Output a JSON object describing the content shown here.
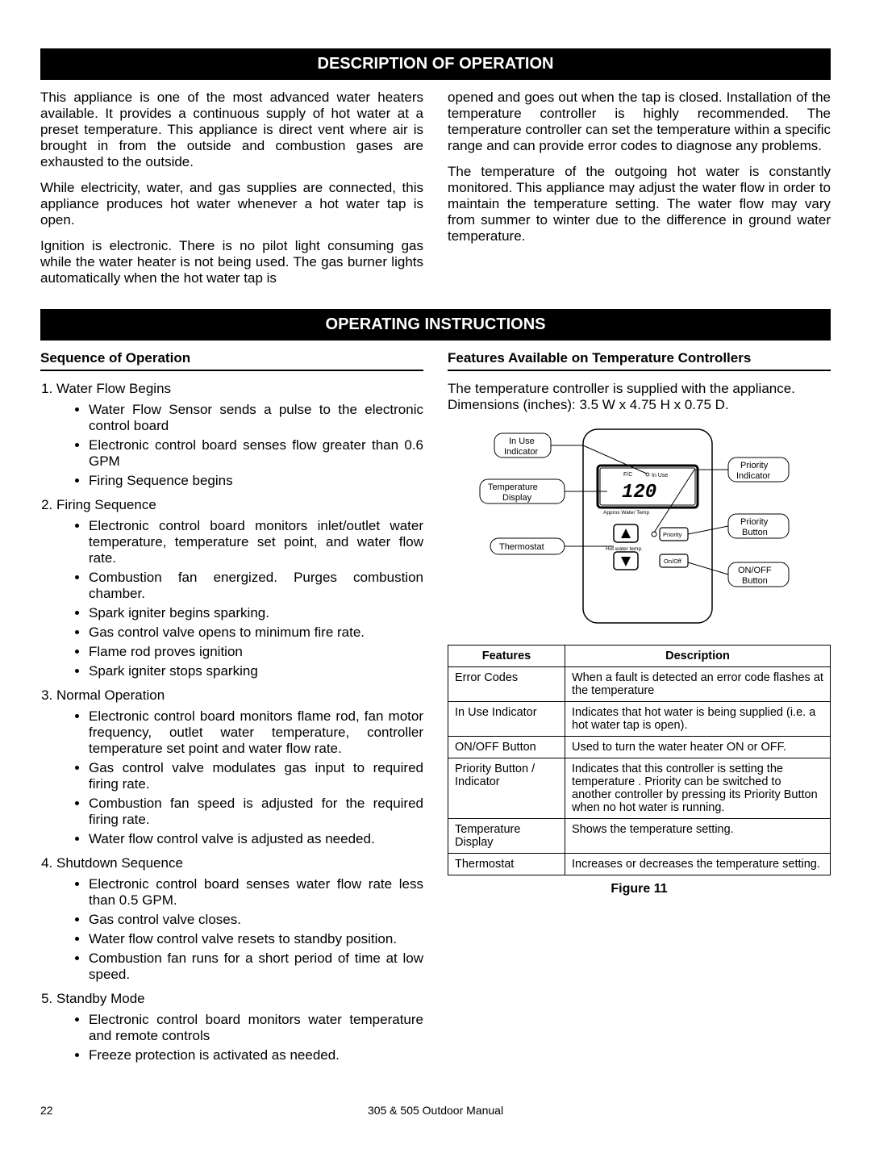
{
  "headers": {
    "description": "DESCRIPTION OF OPERATION",
    "operating": "OPERATING INSTRUCTIONS"
  },
  "intro": {
    "left": [
      "This appliance is one of the most advanced water heaters available. It provides a continuous supply of hot water at a preset temperature. This appliance is direct vent where air is brought in from the outside and combustion gases are exhausted to the outside.",
      "While electricity, water, and gas supplies are connected, this appliance produces hot water whenever a hot water tap is open.",
      "Ignition is electronic. There is no pilot light consuming gas while the water heater is not being used. The gas burner lights automatically when the hot water tap is"
    ],
    "right": [
      "opened and goes out when the tap is closed. Installation of the temperature controller is highly recommended. The temperature controller can set the temperature within a specific range and can provide error codes to diagnose any problems.",
      "The temperature of the outgoing hot water is constantly monitored. This appliance may adjust the water flow in order to maintain the temperature setting. The water flow may vary from summer to winter due to the difference in ground water temperature."
    ]
  },
  "sequence": {
    "heading": "Sequence of Operation",
    "items": [
      {
        "title": "Water Flow Begins",
        "bullets": [
          "Water Flow Sensor sends a pulse to the electronic control board",
          "Electronic control board senses flow greater than 0.6 GPM",
          "Firing Sequence begins"
        ]
      },
      {
        "title": "Firing Sequence",
        "bullets": [
          "Electronic control board monitors inlet/outlet water temperature, temperature set point, and water flow rate.",
          "Combustion fan energized. Purges combustion chamber.",
          "Spark igniter begins sparking.",
          "Gas control valve opens to minimum fire rate.",
          "Flame rod proves ignition",
          "Spark igniter stops sparking"
        ]
      },
      {
        "title": "Normal Operation",
        "bullets": [
          "Electronic control board monitors flame rod, fan motor frequency, outlet water temperature, controller temperature set point and water flow rate.",
          "Gas control valve modulates gas input to required firing rate.",
          "Combustion fan speed is adjusted for the required firing rate.",
          "Water flow control valve is adjusted as needed."
        ]
      },
      {
        "title": "Shutdown Sequence",
        "bullets": [
          "Electronic control board senses water flow rate less than 0.5 GPM.",
          "Gas control valve closes.",
          "Water flow control valve resets to standby position.",
          "Combustion fan runs for a short period of time at low speed."
        ]
      },
      {
        "title": "Standby Mode",
        "bullets": [
          "Electronic control board monitors water temperature and remote controls",
          "Freeze protection is activated as needed."
        ]
      }
    ]
  },
  "features_section": {
    "heading": "Features Available on Temperature Controllers",
    "dims": "The temperature controller is supplied with the appliance. Dimensions (inches): 3.5 W x 4.75 H x 0.75 D.",
    "diagram": {
      "labels": {
        "in_use": "In Use Indicator",
        "temp_display": "Temperature Display",
        "thermostat": "Thermostat",
        "priority_ind": "Priority Indicator",
        "priority_btn": "Priority Button",
        "onoff": "ON/OFF Button"
      },
      "lcd": {
        "fc": "F/C",
        "inuse": "In Use",
        "value": "120",
        "approx": "Approx Water Temp",
        "hotwater": "Hot water temp.",
        "priority": "Priority",
        "onoff": "On/Off"
      },
      "colors": {
        "stroke": "#000000",
        "fill": "#ffffff",
        "gray": "#d8d8d8"
      }
    },
    "table": {
      "headers": [
        "Features",
        "Description"
      ],
      "rows": [
        [
          "Error Codes",
          "When a fault is detected an error code flashes at the temperature"
        ],
        [
          "In Use Indicator",
          "Indicates that hot water is being supplied (i.e. a hot water tap is open)."
        ],
        [
          "ON/OFF Button",
          "Used to turn the water heater ON or OFF."
        ],
        [
          "Priority Button / Indicator",
          "Indicates that this controller is setting the temperature . Priority can be switched to another controller by pressing its Priority Button when no hot water is running."
        ],
        [
          "Temperature Display",
          "Shows the temperature setting."
        ],
        [
          "Thermostat",
          "Increases or decreases the temperature setting."
        ]
      ]
    },
    "figure_caption": "Figure 11"
  },
  "footer": {
    "page": "22",
    "manual": "305 & 505 Outdoor Manual"
  }
}
